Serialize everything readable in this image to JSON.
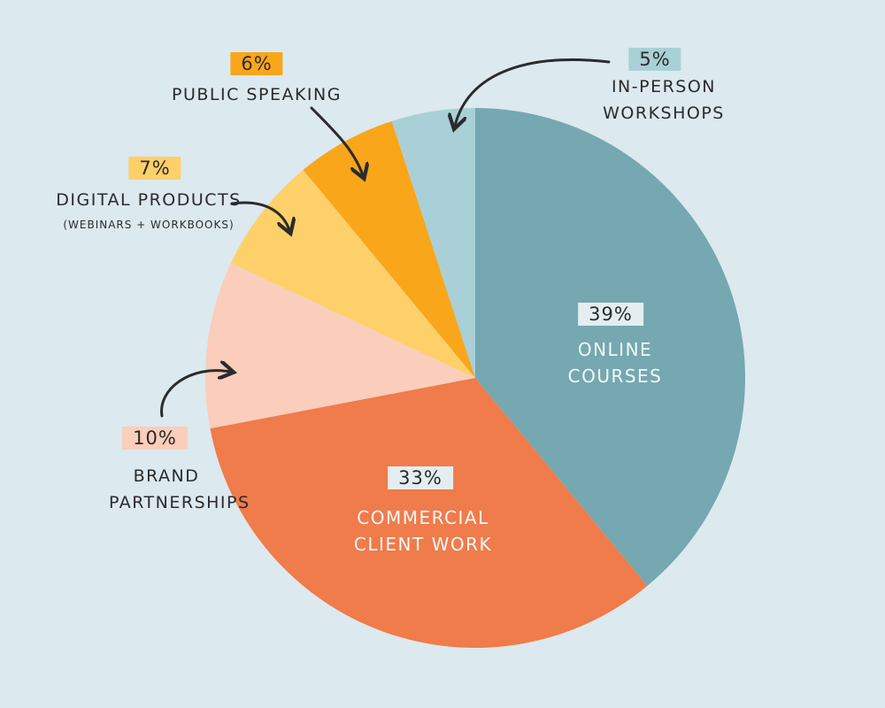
{
  "chart_data": {
    "type": "pie",
    "categories": [
      "ONLINE COURSES",
      "COMMERCIAL CLIENT WORK",
      "BRAND PARTNERSHIPS",
      "DIGITAL PRODUCTS",
      "PUBLIC SPEAKING",
      "IN-PERSON WORKSHOPS"
    ],
    "sublabels": [
      null,
      null,
      null,
      "(WEBINARS + WORKBOOKS)",
      null,
      null
    ],
    "values": [
      39,
      33,
      10,
      7,
      6,
      5
    ],
    "value_labels": [
      "39%",
      "33%",
      "10%",
      "7%",
      "6%",
      "5%"
    ],
    "colors": [
      "#75a8b1",
      "#f07b4b",
      "#fbcdbb",
      "#fdd069",
      "#f9a61b",
      "#a9d0d7"
    ]
  }
}
